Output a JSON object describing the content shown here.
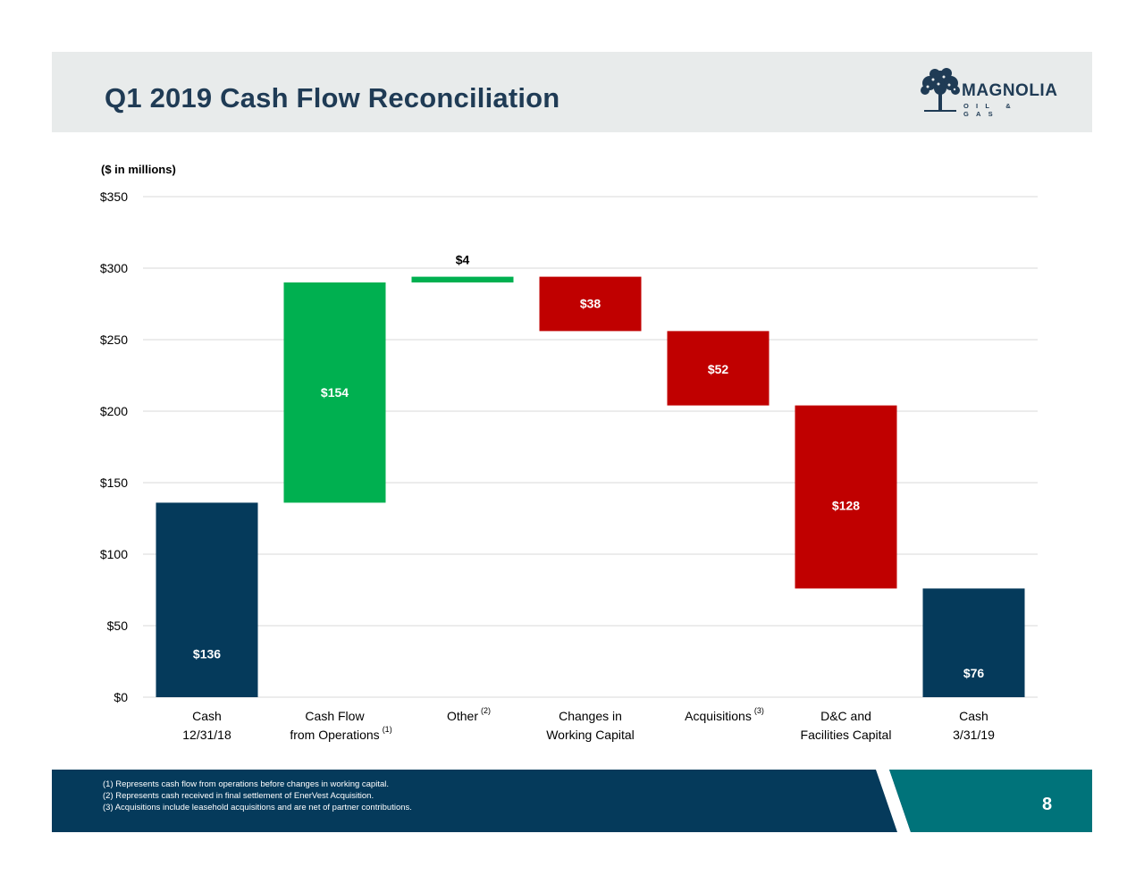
{
  "header": {
    "title": "Q1 2019 Cash Flow Reconciliation",
    "logo_text": "MAGNOLIA",
    "logo_subtext": "OIL & GAS"
  },
  "units_label": "($ in millions)",
  "chart_data": {
    "type": "waterfall",
    "y_ticks": [
      "$0",
      "$50",
      "$100",
      "$150",
      "$200",
      "$250",
      "$300",
      "$350"
    ],
    "ylim": [
      0,
      350
    ],
    "grid": true,
    "legend": "none",
    "categories": [
      {
        "line1": "Cash",
        "line2": "12/31/18",
        "footnote": ""
      },
      {
        "line1": "Cash Flow",
        "line2": "from Operations",
        "footnote": "(1)"
      },
      {
        "line1": "Other",
        "line2": "",
        "footnote": "(2)"
      },
      {
        "line1": "Changes in",
        "line2": "Working Capital",
        "footnote": ""
      },
      {
        "line1": "Acquisitions",
        "line2": "",
        "footnote": "(3)"
      },
      {
        "line1": "D&C and",
        "line2": "Facilities Capital",
        "footnote": ""
      },
      {
        "line1": "Cash",
        "line2": "3/31/19",
        "footnote": ""
      }
    ],
    "bars": [
      {
        "kind": "total",
        "base": 0,
        "top": 136,
        "label": "$136"
      },
      {
        "kind": "increase",
        "base": 136,
        "top": 290,
        "label": "$154"
      },
      {
        "kind": "increase",
        "base": 290,
        "top": 294,
        "label": "$4"
      },
      {
        "kind": "decrease",
        "base": 256,
        "top": 294,
        "label": "$38"
      },
      {
        "kind": "decrease",
        "base": 204,
        "top": 256,
        "label": "$52"
      },
      {
        "kind": "decrease",
        "base": 76,
        "top": 204,
        "label": "$128"
      },
      {
        "kind": "total",
        "base": 0,
        "top": 76,
        "label": "$76"
      }
    ],
    "colors": {
      "total": "#053a5b",
      "increase": "#00b050",
      "decrease": "#c00000",
      "grid": "#d9d9d9"
    }
  },
  "footer": {
    "notes": [
      "(1)  Represents cash flow from operations before changes in working capital.",
      "(2)  Represents cash received in final settlement of EnerVest Acquisition.",
      "(3)  Acquisitions include leasehold acquisitions and are net of partner contributions."
    ],
    "page_number": "8",
    "colors": {
      "band": "#053a5b",
      "accent": "#00737a"
    }
  }
}
